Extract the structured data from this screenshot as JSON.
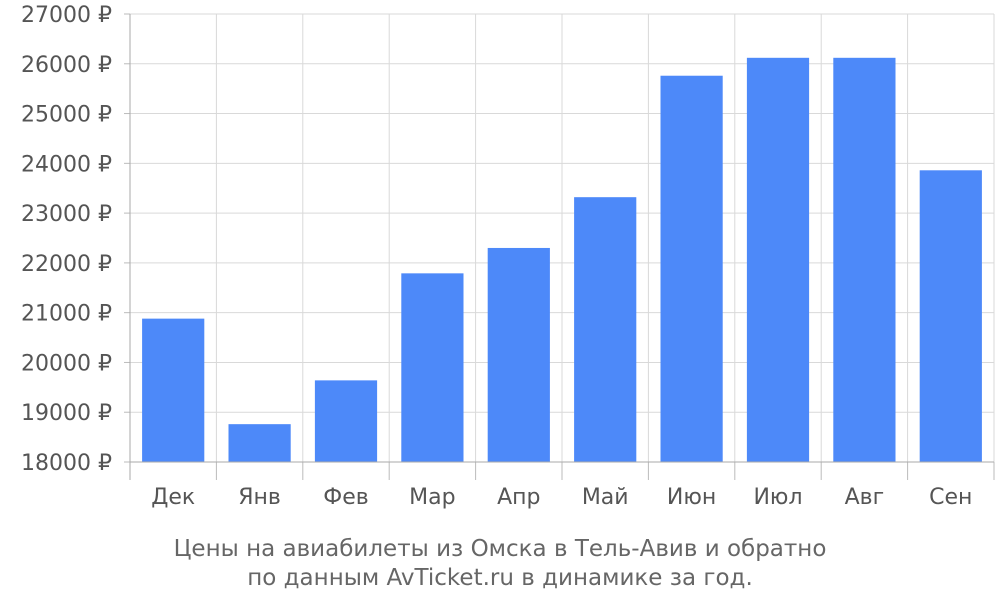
{
  "chart_data": {
    "type": "bar",
    "categories": [
      "Дек",
      "Янв",
      "Фев",
      "Мар",
      "Апр",
      "Май",
      "Июн",
      "Июл",
      "Авг",
      "Сен"
    ],
    "values": [
      20880,
      18760,
      19640,
      21790,
      22300,
      23320,
      25760,
      26120,
      26120,
      23860
    ],
    "ylim": [
      18000,
      27000
    ],
    "y_ticks": [
      18000,
      19000,
      20000,
      21000,
      22000,
      23000,
      24000,
      25000,
      26000,
      27000
    ],
    "y_unit": "₽",
    "grid": true,
    "bar_color": "#4d89f9",
    "caption_line1": "Цены на авиабилеты из Омска в Тель-Авив и обратно",
    "caption_line2": "по данным AvTicket.ru в динамике за год."
  }
}
